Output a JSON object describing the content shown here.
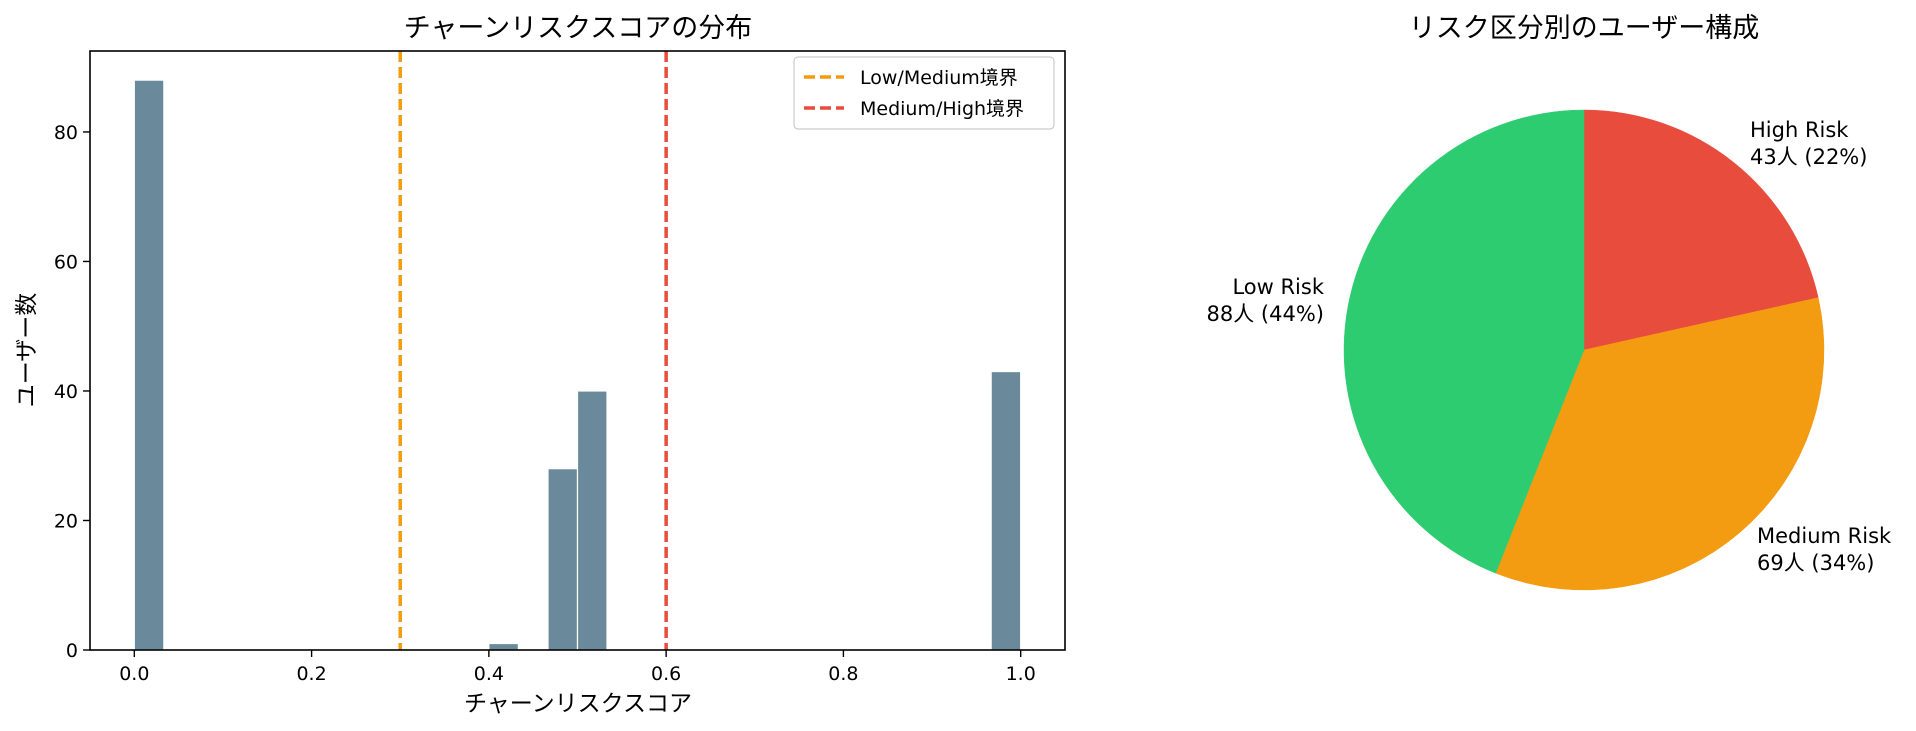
{
  "colors": {
    "bar": "#6a8a9c",
    "bar_edge": "#ffffff",
    "low_medium_line": "#f39c12",
    "medium_high_line": "#e74c3c",
    "low": "#2ecc71",
    "medium": "#f39c12",
    "high": "#e74c3c"
  },
  "chart_data": [
    {
      "type": "bar",
      "subtype": "histogram",
      "title": "チャーンリスクスコアの分布",
      "xlabel": "チャーンリスクスコア",
      "ylabel": "ユーザー数",
      "xlim": [
        -0.05,
        1.05
      ],
      "ylim": [
        0,
        92.5
      ],
      "x_ticks": [
        0.0,
        0.2,
        0.4,
        0.6,
        0.8,
        1.0
      ],
      "x_tick_labels": [
        "0.0",
        "0.2",
        "0.4",
        "0.6",
        "0.8",
        "1.0"
      ],
      "y_ticks": [
        0,
        20,
        40,
        60,
        80
      ],
      "y_tick_labels": [
        "0",
        "20",
        "40",
        "60",
        "80"
      ],
      "bin_width": 0.0333,
      "bins": [
        {
          "start": 0.0,
          "count": 88
        },
        {
          "start": 0.4,
          "count": 1
        },
        {
          "start": 0.4667,
          "count": 28
        },
        {
          "start": 0.5,
          "count": 40
        },
        {
          "start": 0.9667,
          "count": 43
        }
      ],
      "reference_lines": [
        {
          "x": 0.3,
          "label": "Low/Medium境界",
          "color": "#f39c12",
          "style": "dashed"
        },
        {
          "x": 0.6,
          "label": "Medium/High境界",
          "color": "#e74c3c",
          "style": "dashed"
        }
      ],
      "legend": {
        "position": "top-right"
      },
      "grid": false
    },
    {
      "type": "pie",
      "title": "リスク区分別のユーザー構成",
      "start_angle_deg": 90,
      "direction": "clockwise",
      "slices": [
        {
          "label": "High Risk",
          "value": 43,
          "pct_label": "43人 (22%)",
          "color": "#e74c3c"
        },
        {
          "label": "Medium Risk",
          "value": 69,
          "pct_label": "69人 (34%)",
          "color": "#f39c12"
        },
        {
          "label": "Low Risk",
          "value": 88,
          "pct_label": "88人 (44%)",
          "color": "#2ecc71"
        }
      ]
    }
  ]
}
